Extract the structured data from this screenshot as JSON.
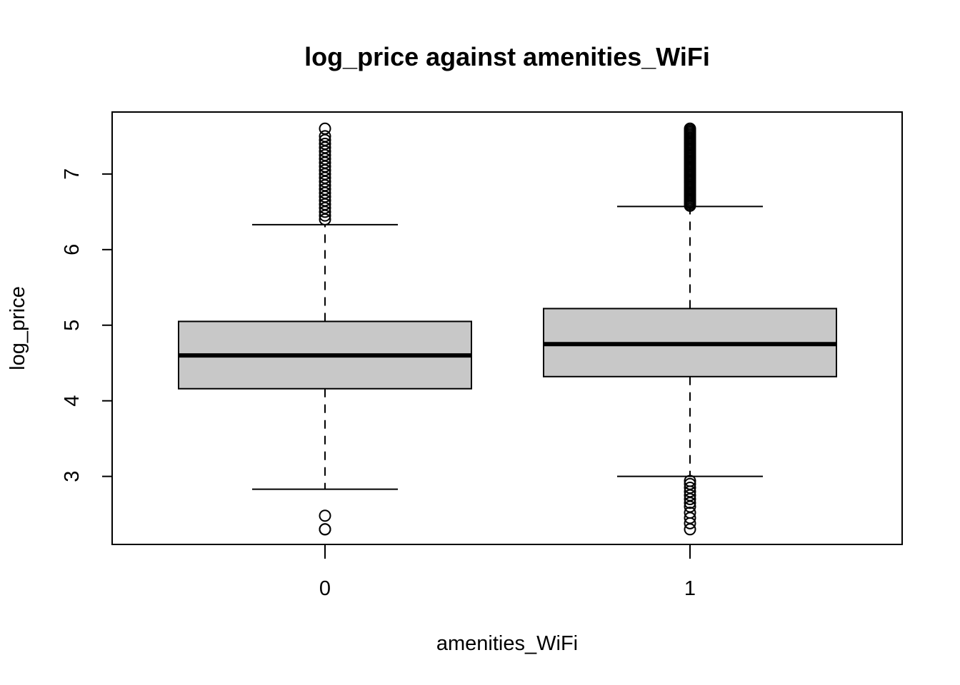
{
  "chart_data": {
    "type": "boxplot",
    "title": "log_price against amenities_WiFi",
    "xlabel": "amenities_WiFi",
    "ylabel": "log_price",
    "categories": [
      "0",
      "1"
    ],
    "y_ticks": [
      "3",
      "4",
      "5",
      "6",
      "7"
    ],
    "ylim": [
      2.1,
      7.82
    ],
    "grid": false,
    "legend": "none",
    "colors": {
      "box_fill": "#c8c8c8",
      "line": "#000000"
    },
    "boxes": [
      {
        "category": "0",
        "whisker_low": 2.83,
        "q1": 4.16,
        "median": 4.6,
        "q3": 5.05,
        "whisker_high": 6.33,
        "outliers_low": [
          2.48,
          2.3,
          2.3
        ],
        "outliers_high": [
          6.4,
          6.45,
          6.5,
          6.55,
          6.6,
          6.65,
          6.7,
          6.75,
          6.8,
          6.85,
          6.9,
          6.95,
          7.0,
          7.05,
          7.1,
          7.15,
          7.2,
          7.25,
          7.3,
          7.35,
          7.4,
          7.45,
          7.5,
          7.6
        ]
      },
      {
        "category": "1",
        "whisker_low": 3.0,
        "q1": 4.32,
        "median": 4.75,
        "q3": 5.22,
        "whisker_high": 6.57,
        "outliers_low": [
          2.3,
          2.38,
          2.45,
          2.52,
          2.6,
          2.65,
          2.7,
          2.75,
          2.8,
          2.85,
          2.9,
          2.94
        ],
        "outliers_high": [
          6.58,
          6.6,
          6.62,
          6.64,
          6.66,
          6.68,
          6.7,
          6.72,
          6.74,
          6.76,
          6.78,
          6.8,
          6.82,
          6.84,
          6.86,
          6.88,
          6.9,
          6.92,
          6.94,
          6.96,
          6.98,
          7.0,
          7.02,
          7.04,
          7.06,
          7.08,
          7.1,
          7.12,
          7.14,
          7.16,
          7.18,
          7.2,
          7.22,
          7.24,
          7.26,
          7.28,
          7.3,
          7.32,
          7.34,
          7.36,
          7.38,
          7.4,
          7.42,
          7.44,
          7.46,
          7.48,
          7.5,
          7.52,
          7.54,
          7.56,
          7.58,
          7.6
        ]
      }
    ]
  }
}
